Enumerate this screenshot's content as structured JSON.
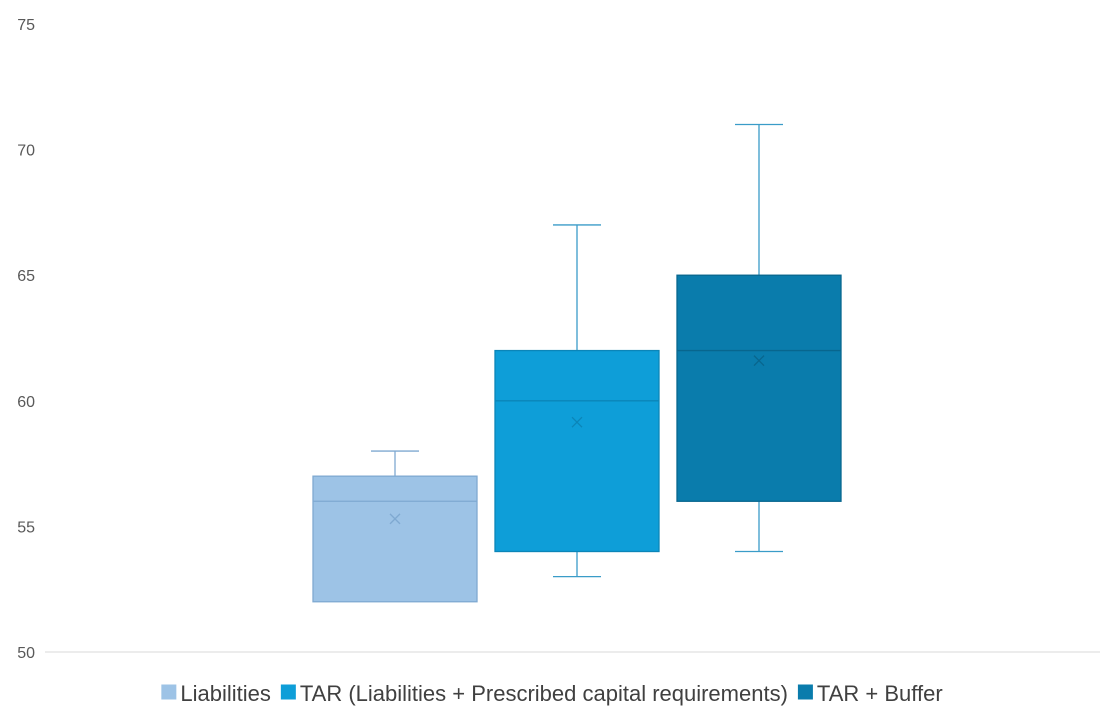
{
  "chart_data": {
    "type": "box",
    "ylim": [
      50,
      75
    ],
    "yticks": [
      50,
      55,
      60,
      65,
      70,
      75
    ],
    "grid": false,
    "legend_position": "bottom",
    "series": [
      {
        "name": "Liabilities",
        "color": "#9dc3e6",
        "edge": "#7fa9d1",
        "whisker_color": "#7fa9d1",
        "min": 52,
        "q1": 52,
        "median": 56,
        "q3": 57,
        "max": 58,
        "mean": 55.3
      },
      {
        "name": "TAR (Liabilities + Prescribed capital requirements)",
        "color": "#0e9ed8",
        "edge": "#0b85b8",
        "whisker_color": "#3a9cc8",
        "min": 53,
        "q1": 54,
        "median": 60,
        "q3": 62,
        "max": 67,
        "mean": 59.15
      },
      {
        "name": "TAR + Buffer",
        "color": "#0a7cac",
        "edge": "#08668e",
        "whisker_color": "#3a9cc8",
        "min": 54,
        "q1": 56,
        "median": 62,
        "q3": 65,
        "max": 71,
        "mean": 61.6
      }
    ]
  }
}
